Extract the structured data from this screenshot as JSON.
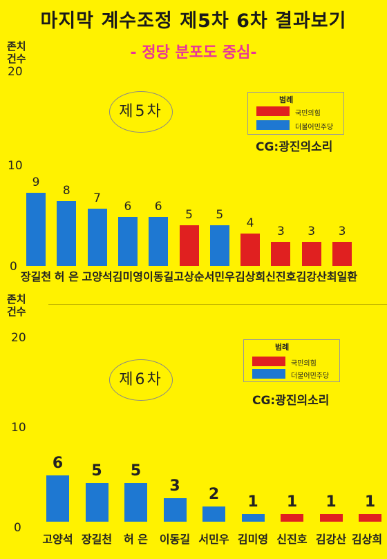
{
  "title": "마지막 계수조정 제5차 6차 결과보기",
  "subtitle": "- 정당 분포도 중심-",
  "colors": {
    "ppp": "#E02020",
    "dem": "#1E78D2",
    "background": "#FFF200",
    "subtitle": "#E8359A"
  },
  "chart_data": [
    {
      "type": "bar",
      "title": "제5차",
      "ylabel": "존치\n건수",
      "ylim": [
        0,
        20
      ],
      "yticks": [
        "0",
        "10",
        "20"
      ],
      "legend": {
        "title": "범례",
        "entries": [
          "국민의힘",
          "더불어민주당"
        ],
        "placement": "top-right"
      },
      "credit": "CG:광진의소리",
      "categories": [
        "장길천",
        "허 은",
        "고양석",
        "김미영",
        "이동길",
        "고상순",
        "서민우",
        "김상희",
        "신진호",
        "김강산",
        "최일환"
      ],
      "values": [
        9,
        8,
        7,
        6,
        6,
        5,
        5,
        4,
        3,
        3,
        3
      ],
      "value_labels": [
        "9",
        "8",
        "7",
        "6",
        "6",
        "5",
        "5",
        "4",
        "3",
        "3",
        "3"
      ],
      "party": [
        "더불어민주당",
        "더불어민주당",
        "더불어민주당",
        "더불어민주당",
        "더불어민주당",
        "국민의힘",
        "더불어민주당",
        "국민의힘",
        "국민의힘",
        "국민의힘",
        "국민의힘"
      ]
    },
    {
      "type": "bar",
      "title": "제6차",
      "ylabel": "존치\n건수",
      "ylim": [
        0,
        20
      ],
      "yticks": [
        "0",
        "10",
        "20"
      ],
      "legend": {
        "title": "범례",
        "entries": [
          "국민의힘",
          "더불어민주당"
        ],
        "placement": "top-right"
      },
      "credit": "CG:광진의소리",
      "categories": [
        "고양석",
        "장길천",
        "허 은",
        "이동길",
        "서민우",
        "김미영",
        "신진호",
        "김강산",
        "김상희"
      ],
      "values": [
        6,
        5,
        5,
        3,
        2,
        1,
        1,
        1,
        1
      ],
      "value_labels": [
        "6",
        "5",
        "5",
        "3",
        "2",
        "1",
        "1",
        "1",
        "1"
      ],
      "party": [
        "더불어민주당",
        "더불어민주당",
        "더불어민주당",
        "더불어민주당",
        "더불어민주당",
        "더불어민주당",
        "국민의힘",
        "국민의힘",
        "국민의힘"
      ]
    }
  ]
}
